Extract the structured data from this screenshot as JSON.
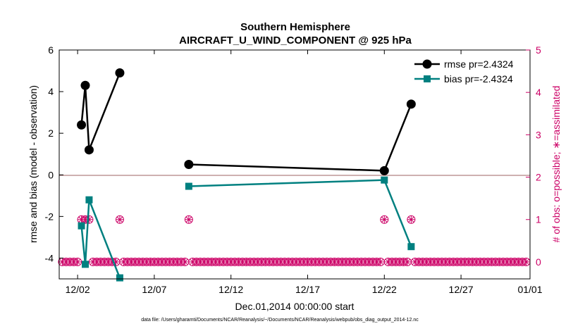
{
  "chart_data": {
    "type": "line",
    "title": "Southern Hemisphere",
    "subtitle": "AIRCRAFT_U_WIND_COMPONENT @ 925 hPa",
    "xlabel": "Dec.01,2014 00:00:00 start",
    "ylabel": "rmse and bias (model - observation)",
    "ylabel_right": "# of obs: o=possible; ∗=assimilated",
    "footer": "data file: /Users/gharamti/Documents/NCAR/Reanalysis/~/Documents/NCAR/Reanalysis/webpub/obs_diag_output_2014-12.nc",
    "xlim": [
      0.3,
      31.0
    ],
    "ylim": [
      -5,
      6
    ],
    "ylim_right": [
      -0.4,
      5
    ],
    "x_tick_values": [
      1.5,
      6.5,
      11.5,
      16.5,
      21.5,
      26.5,
      31.0
    ],
    "x_tick_labels": [
      "12/02",
      "12/07",
      "12/12",
      "12/17",
      "12/22",
      "12/27",
      "01/01"
    ],
    "y_ticks": [
      -4,
      -2,
      0,
      2,
      4,
      6
    ],
    "y_ticks_right": [
      0,
      1,
      2,
      3,
      4,
      5
    ],
    "grid": false,
    "legend_position": "top-right",
    "colors": {
      "rmse": "#000000",
      "bias": "#008080",
      "obs": "#cc0066",
      "zero_line": "#b08080"
    },
    "series": [
      {
        "name": "rmse pr=2.4324",
        "marker": "circle",
        "x": [
          1.5,
          1.75,
          2.0,
          2.25,
          4.25,
          6.75,
          8.75,
          21.5,
          23.25
        ],
        "y": [
          null,
          2.4,
          4.3,
          1.2,
          4.9,
          null,
          0.5,
          0.2,
          3.4
        ]
      },
      {
        "name": "bias pr=-2.4324",
        "marker": "square",
        "x": [
          1.5,
          1.75,
          2.0,
          2.25,
          4.25,
          6.75,
          8.75,
          21.5,
          23.25
        ],
        "y": [
          null,
          -2.45,
          -4.3,
          -1.2,
          -4.95,
          null,
          -0.55,
          -0.25,
          -3.45
        ]
      }
    ],
    "obs_possible_nonzero": [
      {
        "x": 1.75,
        "count": 1
      },
      {
        "x": 2.0,
        "count": 1
      },
      {
        "x": 2.25,
        "count": 1
      },
      {
        "x": 4.25,
        "count": 1
      },
      {
        "x": 8.75,
        "count": 1
      },
      {
        "x": 21.5,
        "count": 1
      },
      {
        "x": 23.25,
        "count": 1
      }
    ],
    "obs_baseline": {
      "x_start": 0.5,
      "x_end": 30.75,
      "step": 0.25,
      "count": 0
    }
  }
}
